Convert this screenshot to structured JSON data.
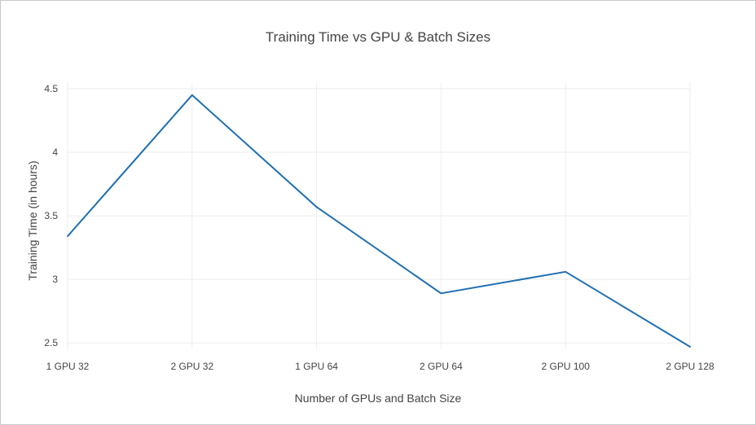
{
  "chart_data": {
    "type": "line",
    "title": "Training Time vs GPU & Batch Sizes",
    "xlabel": "Number of GPUs and Batch Size",
    "ylabel": "Training Time (in hours)",
    "categories": [
      "1 GPU 32",
      "2 GPU 32",
      "1 GPU 64",
      "2 GPU 64",
      "2 GPU 100",
      "2 GPU 128"
    ],
    "series": [
      {
        "values": [
          3.34,
          4.45,
          3.57,
          2.89,
          3.06,
          2.47
        ],
        "color": "#1f6fb2"
      }
    ],
    "yticks": [
      2.5,
      3,
      3.5,
      4,
      4.5
    ],
    "ytick_labels": [
      "2.5",
      "3",
      "3.5",
      "4",
      "4.5"
    ],
    "ylim": [
      2.45,
      4.5
    ],
    "grid": true,
    "legend": "none"
  }
}
